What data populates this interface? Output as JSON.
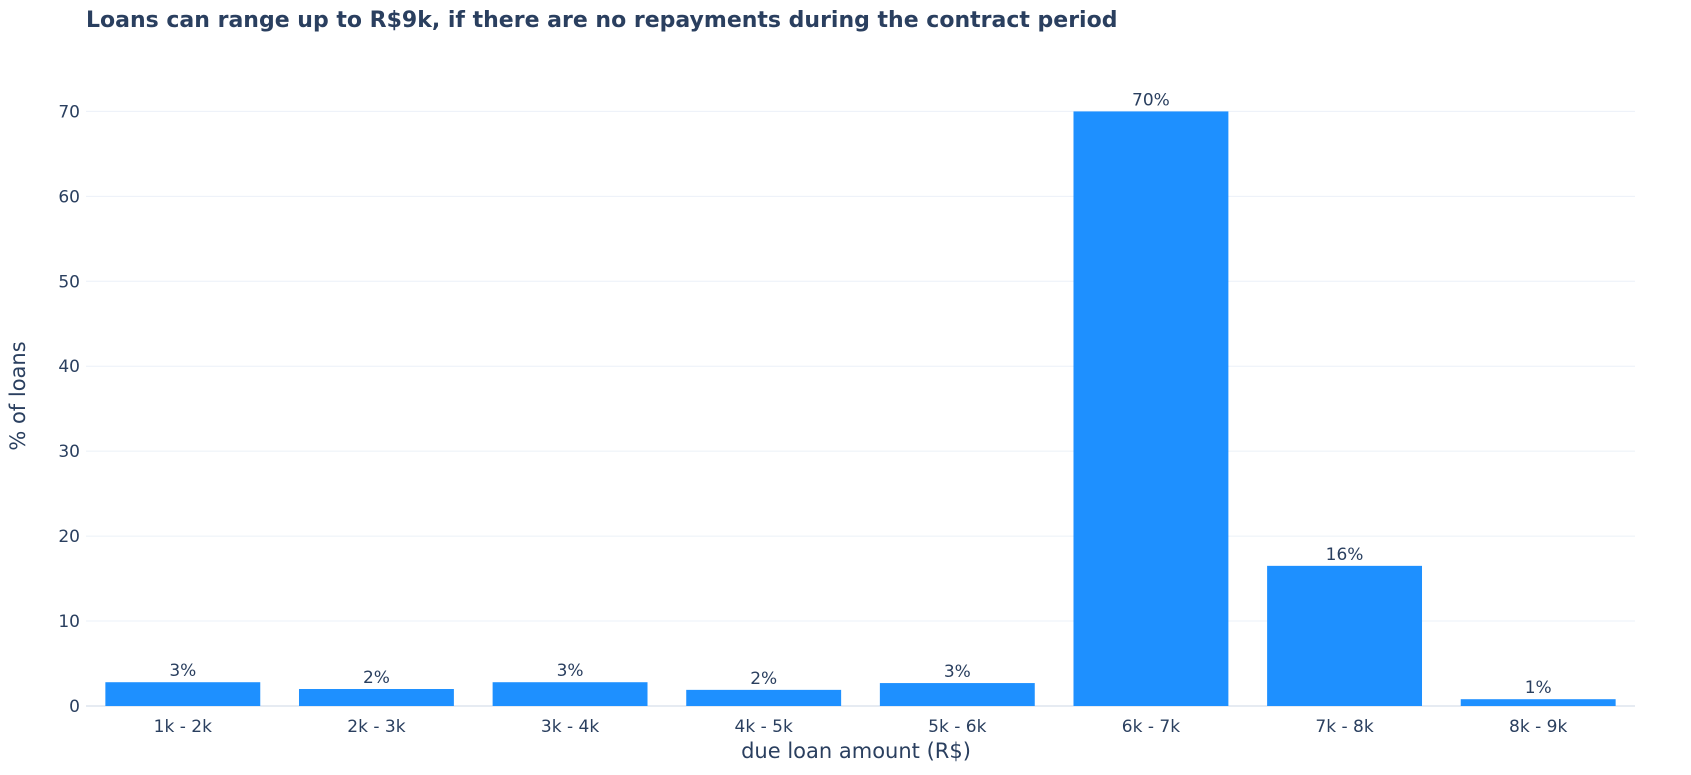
{
  "chart_data": {
    "type": "bar",
    "title": "Loans can range up to R$9k, if there are no repayments during the contract period",
    "xlabel": "due loan amount (R$)",
    "ylabel": "% of loans",
    "categories": [
      "1k - 2k",
      "2k - 3k",
      "3k - 4k",
      "4k - 5k",
      "5k - 6k",
      "6k - 7k",
      "7k - 8k",
      "8k - 9k"
    ],
    "values": [
      2.8,
      2.0,
      2.8,
      1.9,
      2.7,
      70.0,
      16.5,
      0.8
    ],
    "data_labels": [
      "3%",
      "2%",
      "3%",
      "2%",
      "3%",
      "70%",
      "16%",
      "1%"
    ],
    "yticks": [
      0,
      10,
      20,
      30,
      40,
      50,
      60,
      70
    ],
    "ylim": [
      0,
      73.7
    ],
    "grid": true,
    "colors": {
      "bar": "#1e90ff",
      "grid": "#ebf0f8",
      "text": "#2a3f5f"
    }
  }
}
